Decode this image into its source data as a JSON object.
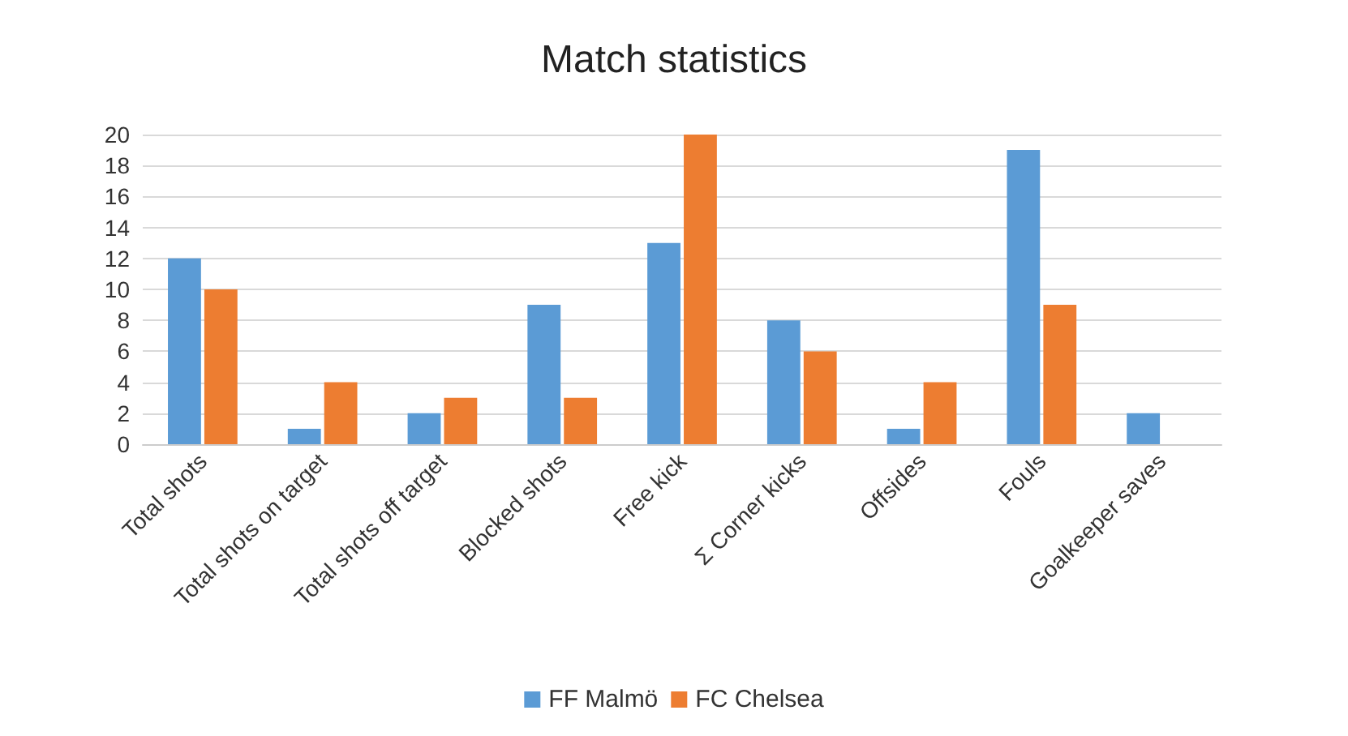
{
  "chart_data": {
    "type": "bar",
    "title": "Match statistics",
    "categories": [
      "Total shots",
      "Total shots on target",
      "Total shots off target",
      "Blocked shots",
      "Free kick",
      "Σ Corner kicks",
      "Offsides",
      "Fouls",
      "Goalkeeper saves"
    ],
    "series": [
      {
        "name": "FF Malmö",
        "color": "#5b9bd5",
        "values": [
          12,
          1,
          2,
          9,
          13,
          8,
          1,
          19,
          2
        ]
      },
      {
        "name": "FC Chelsea",
        "color": "#ed7d31",
        "values": [
          10,
          4,
          3,
          3,
          20,
          6,
          4,
          9,
          0
        ]
      }
    ],
    "ylim": [
      0,
      20
    ],
    "yticks": [
      0,
      2,
      4,
      6,
      8,
      10,
      12,
      14,
      16,
      18,
      20
    ],
    "grid": "y",
    "legend": "bottom"
  }
}
